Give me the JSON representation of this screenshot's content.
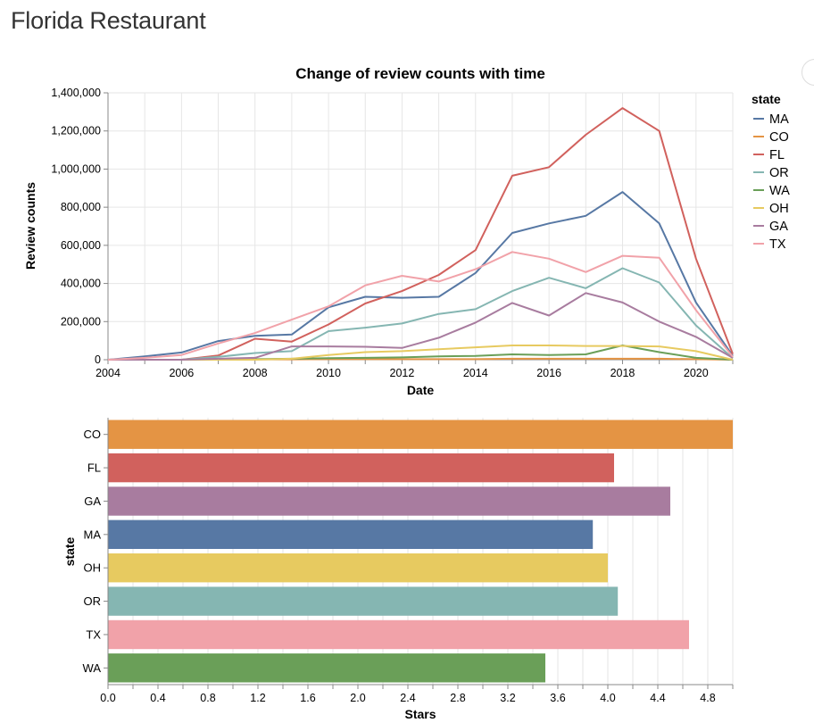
{
  "page": {
    "title": "Florida Restaurant"
  },
  "colors": {
    "MA": "#5778a4",
    "CO": "#e49444",
    "FL": "#d1615d",
    "OR": "#85b6b2",
    "WA": "#6a9f58",
    "OH": "#e7ca60",
    "GA": "#a87c9f",
    "TX": "#f1a2a9"
  },
  "chart_data": [
    {
      "type": "line",
      "title": "Change of review counts with time",
      "xlabel": "Date",
      "ylabel": "Review counts",
      "xlim": [
        2004,
        2021
      ],
      "ylim": [
        0,
        1400000
      ],
      "x_ticks": [
        2004,
        2006,
        2008,
        2010,
        2012,
        2014,
        2016,
        2018,
        2020
      ],
      "x_tick_labels": [
        "2004",
        "2006",
        "2008",
        "2010",
        "2012",
        "2014",
        "2016",
        "2018",
        "2020"
      ],
      "y_ticks": [
        0,
        200000,
        400000,
        600000,
        800000,
        1000000,
        1200000,
        1400000
      ],
      "y_tick_labels": [
        "0",
        "200,000",
        "400,000",
        "600,000",
        "800,000",
        "1,000,000",
        "1,200,000",
        "1,400,000"
      ],
      "grid": true,
      "legend": {
        "title": "state",
        "placement": "right"
      },
      "series": [
        {
          "name": "MA",
          "x": [
            2004,
            2005,
            2006,
            2007,
            2008,
            2009,
            2010,
            2011,
            2012,
            2013,
            2014,
            2015,
            2016,
            2017,
            2018,
            2019,
            2020,
            2021
          ],
          "values": [
            0,
            18000,
            38000,
            98000,
            125000,
            132000,
            275000,
            330000,
            325000,
            330000,
            455000,
            665000,
            715000,
            755000,
            880000,
            715000,
            300000,
            20000
          ]
        },
        {
          "name": "CO",
          "x": [
            2004,
            2005,
            2006,
            2007,
            2008,
            2009,
            2010,
            2011,
            2012,
            2013,
            2014,
            2015,
            2016,
            2017,
            2018,
            2019,
            2020,
            2021
          ],
          "values": [
            0,
            0,
            0,
            0,
            2000,
            2000,
            3000,
            3000,
            3000,
            3000,
            3000,
            5000,
            5000,
            5000,
            5000,
            5000,
            3000,
            0
          ]
        },
        {
          "name": "FL",
          "x": [
            2004,
            2005,
            2006,
            2007,
            2008,
            2009,
            2010,
            2011,
            2012,
            2013,
            2014,
            2015,
            2016,
            2017,
            2018,
            2019,
            2020,
            2021
          ],
          "values": [
            0,
            0,
            0,
            22000,
            110000,
            95000,
            185000,
            295000,
            360000,
            445000,
            575000,
            965000,
            1010000,
            1180000,
            1320000,
            1200000,
            530000,
            30000
          ]
        },
        {
          "name": "OR",
          "x": [
            2004,
            2005,
            2006,
            2007,
            2008,
            2009,
            2010,
            2011,
            2012,
            2013,
            2014,
            2015,
            2016,
            2017,
            2018,
            2019,
            2020,
            2021
          ],
          "values": [
            0,
            0,
            0,
            15000,
            35000,
            45000,
            150000,
            168000,
            190000,
            240000,
            265000,
            360000,
            430000,
            375000,
            480000,
            405000,
            180000,
            8000
          ]
        },
        {
          "name": "WA",
          "x": [
            2004,
            2005,
            2006,
            2007,
            2008,
            2009,
            2010,
            2011,
            2012,
            2013,
            2014,
            2015,
            2016,
            2017,
            2018,
            2019,
            2020,
            2021
          ],
          "values": [
            0,
            0,
            0,
            2000,
            3000,
            5000,
            8000,
            10000,
            12000,
            18000,
            20000,
            28000,
            25000,
            28000,
            75000,
            40000,
            10000,
            0
          ]
        },
        {
          "name": "OH",
          "x": [
            2004,
            2005,
            2006,
            2007,
            2008,
            2009,
            2010,
            2011,
            2012,
            2013,
            2014,
            2015,
            2016,
            2017,
            2018,
            2019,
            2020,
            2021
          ],
          "values": [
            0,
            0,
            0,
            0,
            0,
            5000,
            25000,
            40000,
            45000,
            55000,
            65000,
            75000,
            75000,
            72000,
            72000,
            70000,
            45000,
            0
          ]
        },
        {
          "name": "GA",
          "x": [
            2004,
            2005,
            2006,
            2007,
            2008,
            2009,
            2010,
            2011,
            2012,
            2013,
            2014,
            2015,
            2016,
            2017,
            2018,
            2019,
            2020,
            2021
          ],
          "values": [
            0,
            0,
            0,
            5000,
            10000,
            70000,
            70000,
            68000,
            62000,
            115000,
            195000,
            298000,
            232000,
            350000,
            300000,
            200000,
            120000,
            10000
          ]
        },
        {
          "name": "TX",
          "x": [
            2004,
            2005,
            2006,
            2007,
            2008,
            2009,
            2010,
            2011,
            2012,
            2013,
            2014,
            2015,
            2016,
            2017,
            2018,
            2019,
            2020,
            2021
          ],
          "values": [
            0,
            10000,
            25000,
            85000,
            140000,
            210000,
            280000,
            390000,
            440000,
            410000,
            475000,
            565000,
            530000,
            460000,
            545000,
            535000,
            260000,
            15000
          ]
        }
      ]
    },
    {
      "type": "bar",
      "orientation": "horizontal",
      "xlabel": "Stars",
      "ylabel": "state",
      "xlim": [
        0,
        5
      ],
      "x_ticks": [
        0,
        0.4,
        0.8,
        1.2,
        1.6,
        2.0,
        2.4,
        2.8,
        3.2,
        3.6,
        4.0,
        4.4,
        4.8
      ],
      "x_tick_labels": [
        "0.0",
        "0.4",
        "0.8",
        "1.2",
        "1.6",
        "2.0",
        "2.4",
        "2.8",
        "3.2",
        "3.6",
        "4.0",
        "4.4",
        "4.8"
      ],
      "grid": true,
      "categories": [
        "CO",
        "FL",
        "GA",
        "MA",
        "OH",
        "OR",
        "TX",
        "WA"
      ],
      "values": [
        5.0,
        4.05,
        4.5,
        3.88,
        4.0,
        4.08,
        4.65,
        3.5
      ]
    }
  ]
}
